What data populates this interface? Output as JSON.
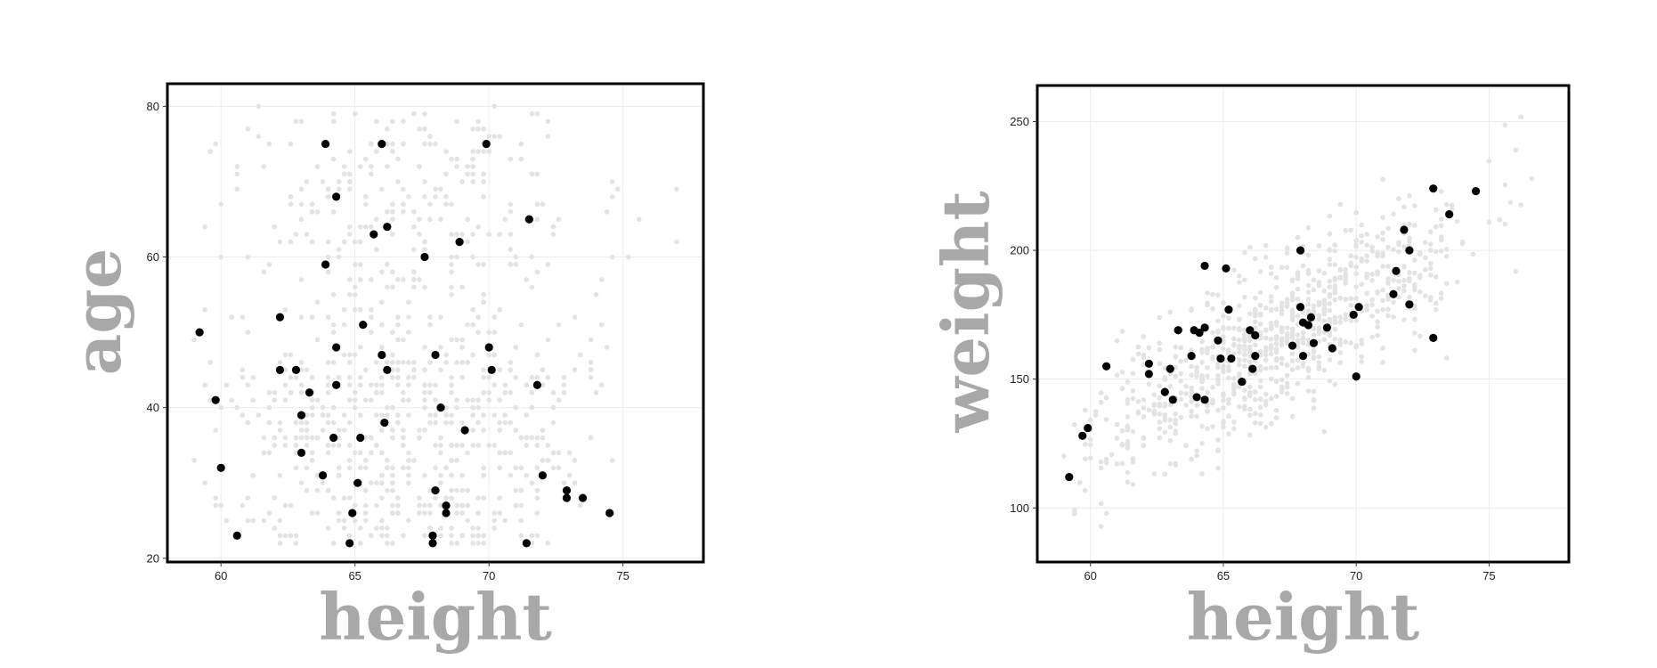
{
  "chart_data": [
    {
      "type": "scatter",
      "title": "",
      "xlabel": "height",
      "ylabel": "age",
      "xlim": [
        58,
        78
      ],
      "ylim": [
        19.5,
        83
      ],
      "xticks": [
        60,
        65,
        70,
        75
      ],
      "yticks": [
        20,
        40,
        60,
        80
      ],
      "grid": true,
      "series": [
        {
          "role": "sample",
          "color": "#000000",
          "points": [
            [
              59.2,
              50
            ],
            [
              59.8,
              41
            ],
            [
              60.0,
              32
            ],
            [
              60.6,
              23
            ],
            [
              62.2,
              52
            ],
            [
              62.2,
              45
            ],
            [
              62.8,
              45
            ],
            [
              63.0,
              39
            ],
            [
              63.0,
              34
            ],
            [
              63.3,
              42
            ],
            [
              63.8,
              31
            ],
            [
              63.9,
              75
            ],
            [
              63.9,
              59
            ],
            [
              64.2,
              36
            ],
            [
              64.3,
              68
            ],
            [
              64.3,
              48
            ],
            [
              64.3,
              43
            ],
            [
              64.8,
              22
            ],
            [
              64.9,
              26
            ],
            [
              65.1,
              30
            ],
            [
              65.2,
              36
            ],
            [
              65.3,
              51
            ],
            [
              65.7,
              63
            ],
            [
              66.0,
              75
            ],
            [
              66.0,
              47
            ],
            [
              66.1,
              38
            ],
            [
              66.2,
              64
            ],
            [
              66.2,
              45
            ],
            [
              67.6,
              60
            ],
            [
              67.9,
              23
            ],
            [
              67.9,
              22
            ],
            [
              68.0,
              29
            ],
            [
              68.0,
              47
            ],
            [
              68.2,
              40
            ],
            [
              68.4,
              27
            ],
            [
              68.4,
              26
            ],
            [
              68.9,
              62
            ],
            [
              69.1,
              37
            ],
            [
              69.9,
              75
            ],
            [
              70.0,
              48
            ],
            [
              70.1,
              45
            ],
            [
              71.4,
              22
            ],
            [
              71.5,
              65
            ],
            [
              71.8,
              43
            ],
            [
              72.0,
              31
            ],
            [
              72.9,
              29
            ],
            [
              72.9,
              28
            ],
            [
              73.5,
              28
            ],
            [
              74.5,
              26
            ]
          ]
        },
        {
          "role": "population",
          "color": "#e3e3e3",
          "points": "cloud"
        }
      ]
    },
    {
      "type": "scatter",
      "title": "",
      "xlabel": "height",
      "ylabel": "weight",
      "xlim": [
        58,
        78
      ],
      "ylim": [
        79,
        264
      ],
      "xticks": [
        60,
        65,
        70,
        75
      ],
      "yticks": [
        100,
        150,
        200,
        250
      ],
      "grid": true,
      "series": [
        {
          "role": "sample",
          "color": "#000000",
          "points": [
            [
              59.2,
              112
            ],
            [
              59.7,
              128
            ],
            [
              59.9,
              131
            ],
            [
              60.6,
              155
            ],
            [
              62.2,
              156
            ],
            [
              62.2,
              152
            ],
            [
              62.8,
              145
            ],
            [
              63.0,
              154
            ],
            [
              63.1,
              142
            ],
            [
              63.3,
              169
            ],
            [
              63.8,
              159
            ],
            [
              63.9,
              169
            ],
            [
              64.0,
              143
            ],
            [
              64.1,
              168
            ],
            [
              64.3,
              194
            ],
            [
              64.3,
              170
            ],
            [
              64.3,
              142
            ],
            [
              64.8,
              165
            ],
            [
              64.9,
              158
            ],
            [
              65.1,
              193
            ],
            [
              65.2,
              177
            ],
            [
              65.3,
              158
            ],
            [
              65.7,
              149
            ],
            [
              66.0,
              169
            ],
            [
              66.1,
              154
            ],
            [
              66.2,
              167
            ],
            [
              66.2,
              159
            ],
            [
              67.6,
              163
            ],
            [
              67.9,
              200
            ],
            [
              67.9,
              178
            ],
            [
              68.0,
              172
            ],
            [
              68.0,
              159
            ],
            [
              68.2,
              171
            ],
            [
              68.3,
              174
            ],
            [
              68.4,
              164
            ],
            [
              68.9,
              170
            ],
            [
              69.1,
              162
            ],
            [
              69.9,
              175
            ],
            [
              70.0,
              151
            ],
            [
              70.1,
              178
            ],
            [
              71.4,
              183
            ],
            [
              71.5,
              192
            ],
            [
              71.8,
              208
            ],
            [
              72.0,
              200
            ],
            [
              72.0,
              179
            ],
            [
              72.9,
              166
            ],
            [
              72.9,
              224
            ],
            [
              73.5,
              214
            ],
            [
              74.5,
              223
            ]
          ]
        },
        {
          "role": "population",
          "color": "#e3e3e3",
          "points": "cloud"
        }
      ]
    }
  ]
}
